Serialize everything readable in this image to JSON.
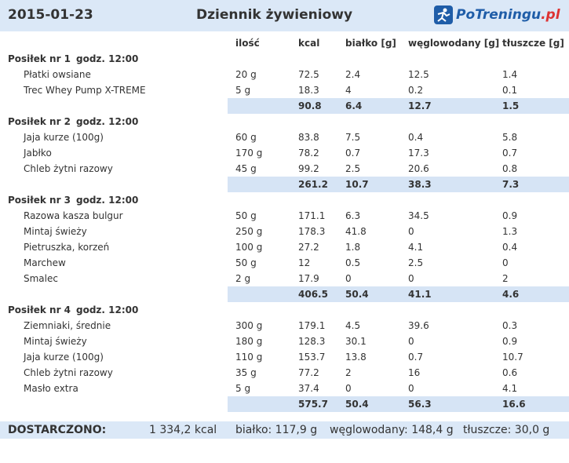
{
  "header": {
    "date": "2015-01-23",
    "title": "Dziennik żywieniowy",
    "logo_main": "PoTreningu",
    "logo_tld": ".pl"
  },
  "columns": [
    "ilość",
    "kcal",
    "białko [g]",
    "węglowodany [g]",
    "tłuszcze [g]"
  ],
  "meals": [
    {
      "name": "Posiłek nr 1",
      "time": "godz. 12:00",
      "items": [
        [
          "Płatki owsiane",
          "20 g",
          "72.5",
          "2.4",
          "12.5",
          "1.4"
        ],
        [
          "Trec Whey Pump X-TREME",
          "5 g",
          "18.3",
          "4",
          "0.2",
          "0.1"
        ]
      ],
      "total": [
        "90.8",
        "6.4",
        "12.7",
        "1.5"
      ]
    },
    {
      "name": "Posiłek nr 2",
      "time": "godz. 12:00",
      "items": [
        [
          "Jaja kurze (100g)",
          "60 g",
          "83.8",
          "7.5",
          "0.4",
          "5.8"
        ],
        [
          "Jabłko",
          "170 g",
          "78.2",
          "0.7",
          "17.3",
          "0.7"
        ],
        [
          "Chleb żytni razowy",
          "45 g",
          "99.2",
          "2.5",
          "20.6",
          "0.8"
        ]
      ],
      "total": [
        "261.2",
        "10.7",
        "38.3",
        "7.3"
      ]
    },
    {
      "name": "Posiłek nr 3",
      "time": "godz. 12:00",
      "items": [
        [
          "Razowa kasza bulgur",
          "50 g",
          "171.1",
          "6.3",
          "34.5",
          "0.9"
        ],
        [
          "Mintaj świeży",
          "250 g",
          "178.3",
          "41.8",
          "0",
          "1.3"
        ],
        [
          "Pietruszka, korzeń",
          "100 g",
          "27.2",
          "1.8",
          "4.1",
          "0.4"
        ],
        [
          "Marchew",
          "50 g",
          "12",
          "0.5",
          "2.5",
          "0"
        ],
        [
          "Smalec",
          "2 g",
          "17.9",
          "0",
          "0",
          "2"
        ]
      ],
      "total": [
        "406.5",
        "50.4",
        "41.1",
        "4.6"
      ]
    },
    {
      "name": "Posiłek nr 4",
      "time": "godz. 12:00",
      "items": [
        [
          "Ziemniaki, średnie",
          "300 g",
          "179.1",
          "4.5",
          "39.6",
          "0.3"
        ],
        [
          "Mintaj świeży",
          "180 g",
          "128.3",
          "30.1",
          "0",
          "0.9"
        ],
        [
          "Jaja kurze (100g)",
          "110 g",
          "153.7",
          "13.8",
          "0.7",
          "10.7"
        ],
        [
          "Chleb żytni razowy",
          "35 g",
          "77.2",
          "2",
          "16",
          "0.6"
        ],
        [
          "Masło extra",
          "5 g",
          "37.4",
          "0",
          "0",
          "4.1"
        ]
      ],
      "total": [
        "575.7",
        "50.4",
        "56.3",
        "16.6"
      ]
    }
  ],
  "summary": {
    "label": "DOSTARCZONO:",
    "kcal": "1 334,2 kcal",
    "protein": "białko: 117,9 g",
    "carbs": "węglowodany: 148,4 g",
    "fat": "tłuszcze: 30,0 g"
  }
}
